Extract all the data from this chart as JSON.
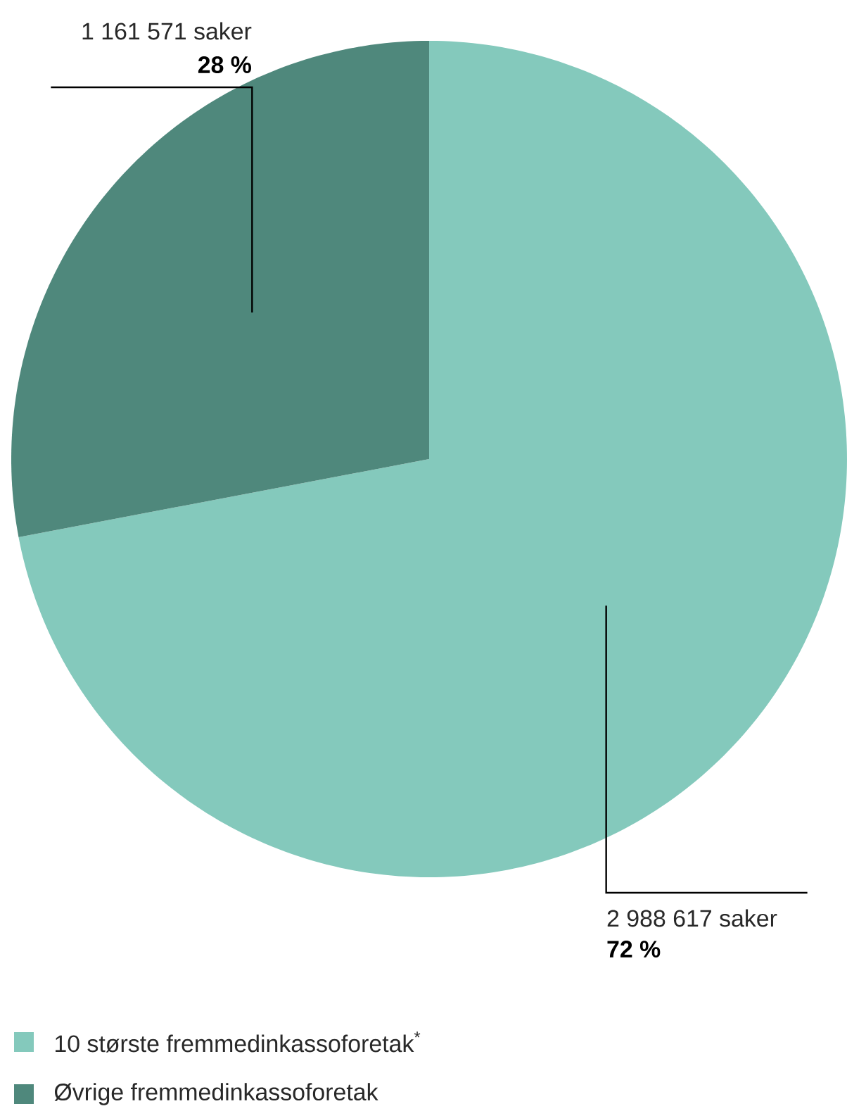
{
  "chart_data": {
    "type": "pie",
    "categories": [
      "10 største fremmedinkassoforetak$^{*}$",
      "Øvrige fremmedinkassoforetak"
    ],
    "values": [
      2988617,
      1161571
    ],
    "colors": [
      "#84c9bc",
      "#4f887c"
    ],
    "value_labels": [
      "2 988 617 saker",
      "1 161 571 saker"
    ],
    "annotations": [
      "72 %",
      "28 %"
    ],
    "legend": "bottom"
  }
}
